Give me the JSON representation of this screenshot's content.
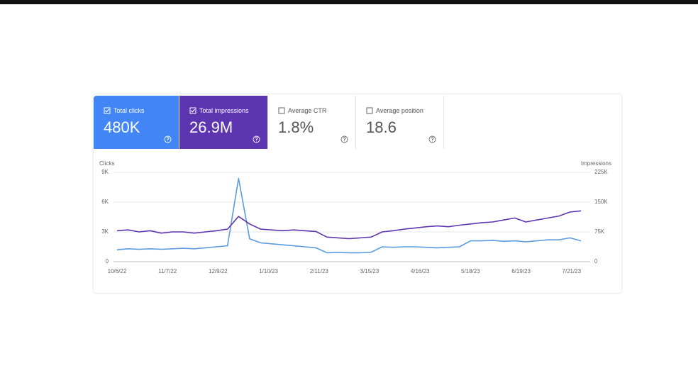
{
  "cards": [
    {
      "label": "Total clicks",
      "value": "480K",
      "color": "#4285f4",
      "checked": true
    },
    {
      "label": "Total impressions",
      "value": "26.9M",
      "color": "#5e35b1",
      "checked": true
    },
    {
      "label": "Average CTR",
      "value": "1.8%",
      "color": "#ffffff",
      "checked": false
    },
    {
      "label": "Average position",
      "value": "18.6",
      "color": "#ffffff",
      "checked": false
    }
  ],
  "chart_data": {
    "type": "line",
    "y_label": "Clicks",
    "y2_label": "Impressions",
    "x": [
      "10/6/22",
      "10/13/22",
      "10/20/22",
      "10/27/22",
      "11/3/22",
      "11/10/22",
      "11/17/22",
      "11/24/22",
      "12/1/22",
      "12/8/22",
      "12/15/22",
      "12/22/22",
      "12/29/22",
      "1/5/23",
      "1/12/23",
      "1/19/23",
      "1/26/23",
      "2/2/23",
      "2/9/23",
      "2/16/23",
      "2/23/23",
      "3/2/23",
      "3/9/23",
      "3/16/23",
      "3/23/23",
      "3/30/23",
      "4/6/23",
      "4/13/23",
      "4/20/23",
      "4/27/23",
      "5/4/23",
      "5/11/23",
      "5/18/23",
      "5/25/23",
      "6/1/23",
      "6/8/23",
      "6/15/23",
      "6/22/23",
      "6/29/23",
      "7/6/23",
      "7/13/23",
      "7/20/23",
      "7/27/23"
    ],
    "series": [
      {
        "name": "Clicks",
        "color": "#5b9be0",
        "values": [
          1200,
          1300,
          1250,
          1300,
          1250,
          1300,
          1350,
          1300,
          1400,
          1500,
          1600,
          8400,
          2300,
          1900,
          1800,
          1700,
          1600,
          1500,
          1400,
          900,
          950,
          900,
          900,
          950,
          1500,
          1450,
          1500,
          1500,
          1450,
          1400,
          1450,
          1500,
          2100,
          2100,
          2150,
          2050,
          2100,
          2000,
          2100,
          2200,
          2200,
          2400,
          2100
        ]
      },
      {
        "name": "Impressions",
        "color": "#5e35b1",
        "axis": "y2",
        "values": [
          78000,
          80000,
          75000,
          78000,
          72000,
          75000,
          75000,
          72000,
          75000,
          78000,
          82000,
          114000,
          95000,
          82000,
          80000,
          78000,
          80000,
          78000,
          76000,
          62000,
          60000,
          58000,
          60000,
          62000,
          75000,
          78000,
          82000,
          85000,
          88000,
          90000,
          88000,
          92000,
          95000,
          98000,
          100000,
          105000,
          110000,
          100000,
          105000,
          110000,
          115000,
          125000,
          128000
        ]
      }
    ],
    "xlim": [
      "10/6/22",
      "7/31/23"
    ],
    "xticks": [
      "10/6/22",
      "11/7/22",
      "12/9/22",
      "1/10/23",
      "2/11/23",
      "3/15/23",
      "4/16/23",
      "5/18/23",
      "6/19/23",
      "7/21/23"
    ],
    "ylim": [
      0,
      9000
    ],
    "yticks": [
      0,
      {
        "value": 3000,
        "label": "3K"
      },
      {
        "value": 6000,
        "label": "6K"
      },
      {
        "value": 9000,
        "label": "9K"
      }
    ],
    "y2lim": [
      0,
      225000
    ],
    "y2ticks": [
      0,
      {
        "value": 75000,
        "label": "75K"
      },
      {
        "value": 150000,
        "label": "150K"
      },
      {
        "value": 225000,
        "label": "225K"
      }
    ],
    "grid": true
  }
}
